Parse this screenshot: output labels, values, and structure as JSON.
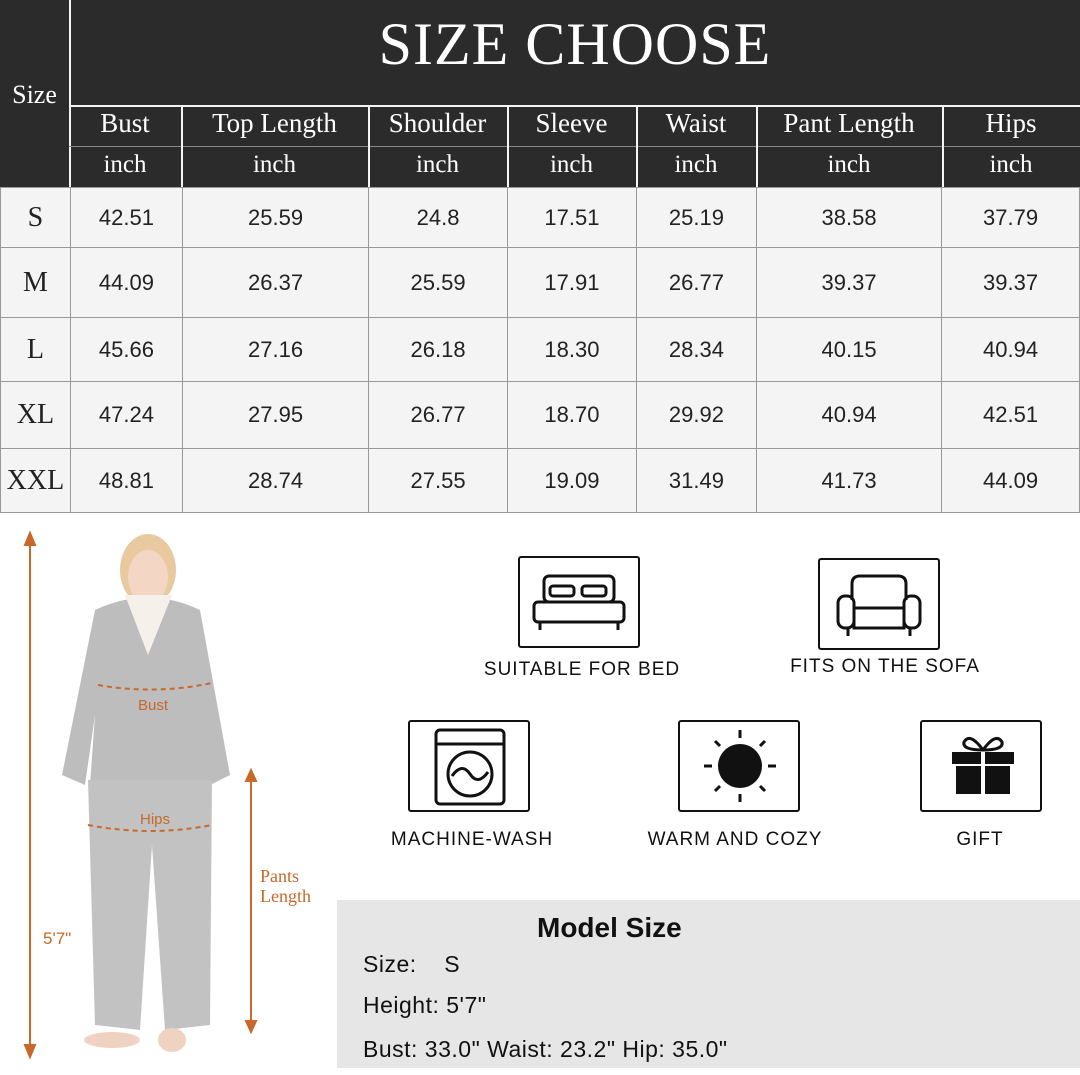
{
  "title": "SIZE CHOOSE",
  "size_header": "Size",
  "columns": [
    {
      "name": "Bust",
      "unit": "inch"
    },
    {
      "name": "Top Length",
      "unit": "inch"
    },
    {
      "name": "Shoulder",
      "unit": "inch"
    },
    {
      "name": "Sleeve",
      "unit": "inch"
    },
    {
      "name": "Waist",
      "unit": "inch"
    },
    {
      "name": "Pant Length",
      "unit": "inch"
    },
    {
      "name": "Hips",
      "unit": "inch"
    }
  ],
  "rows": [
    {
      "size": "S",
      "values": [
        "42.51",
        "25.59",
        "24.8",
        "17.51",
        "25.19",
        "38.58",
        "37.79"
      ]
    },
    {
      "size": "M",
      "values": [
        "44.09",
        "26.37",
        "25.59",
        "17.91",
        "26.77",
        "39.37",
        "39.37"
      ]
    },
    {
      "size": "L",
      "values": [
        "45.66",
        "27.16",
        "26.18",
        "18.30",
        "28.34",
        "40.15",
        "40.94"
      ]
    },
    {
      "size": "XL",
      "values": [
        "47.24",
        "27.95",
        "26.77",
        "18.70",
        "29.92",
        "40.94",
        "42.51"
      ]
    },
    {
      "size": "XXL",
      "values": [
        "48.81",
        "28.74",
        "27.55",
        "19.09",
        "31.49",
        "41.73",
        "44.09"
      ]
    }
  ],
  "figure": {
    "bust": "Bust",
    "hips": "Hips",
    "pants_length": "Pants\nLength",
    "height": "5'7\""
  },
  "features": [
    {
      "icon": "bed-icon",
      "label": "SUITABLE FOR BED"
    },
    {
      "icon": "sofa-icon",
      "label": "FITS ON THE SOFA"
    },
    {
      "icon": "washing-machine-icon",
      "label": "MACHINE-WASH"
    },
    {
      "icon": "sun-icon",
      "label": "WARM AND COZY"
    },
    {
      "icon": "gift-icon",
      "label": "GIFT"
    }
  ],
  "model": {
    "title": "Model Size",
    "size": "Size:    S",
    "height": "Height:  5'7\"",
    "measurements": "Bust: 33.0\" Waist: 23.2\" Hip: 35.0\""
  },
  "colors": {
    "header": "#2b2b2b",
    "accent": "#c8682a",
    "model_bg": "#e6e6e6"
  }
}
